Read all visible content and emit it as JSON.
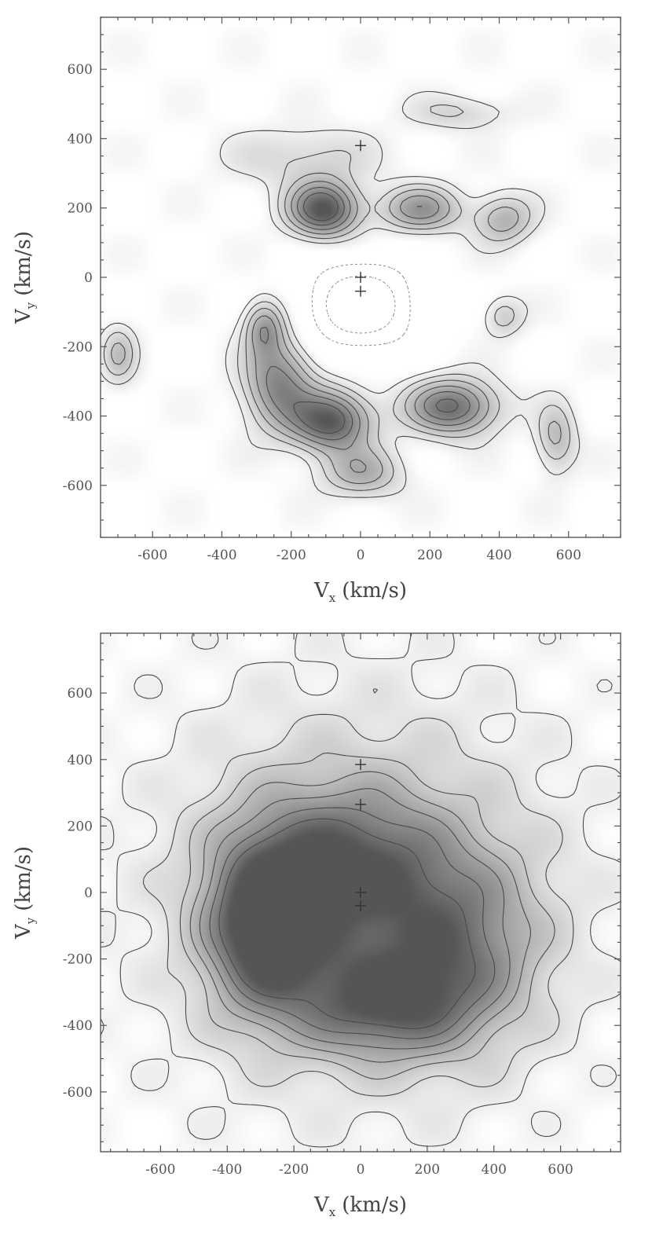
{
  "chart_data": [
    {
      "type": "heatmap",
      "subtype": "contour",
      "title": "",
      "xlabel": "V_x (km/s)",
      "ylabel": "V_y (km/s)",
      "xlabel_main": "V",
      "xlabel_sub": "x",
      "xlabel_unit": "(km/s)",
      "ylabel_main": "V",
      "ylabel_sub": "y",
      "ylabel_unit": "(km/s)",
      "xlim": [
        -750,
        750
      ],
      "ylim": [
        -750,
        750
      ],
      "xticks": [
        -600,
        -400,
        -200,
        0,
        200,
        400,
        600
      ],
      "yticks": [
        -600,
        -400,
        -200,
        0,
        200,
        400,
        600
      ],
      "colormap": "grayscale (dark = high)",
      "negative_contours": "dotted",
      "peaks": [
        {
          "x": -110,
          "y": 200,
          "level": 1.0,
          "sx": 70,
          "sy": 55
        },
        {
          "x": 170,
          "y": 200,
          "level": 0.6,
          "sx": 80,
          "sy": 45
        },
        {
          "x": -90,
          "y": -410,
          "level": 0.95,
          "sx": 80,
          "sy": 60
        },
        {
          "x": 260,
          "y": -370,
          "level": 0.85,
          "sx": 90,
          "sy": 55
        },
        {
          "x": -240,
          "y": -300,
          "level": 0.7,
          "sx": 70,
          "sy": 90
        },
        {
          "x": -280,
          "y": -140,
          "level": 0.55,
          "sx": 40,
          "sy": 55
        },
        {
          "x": 410,
          "y": 170,
          "level": 0.45,
          "sx": 60,
          "sy": 50
        },
        {
          "x": 0,
          "y": -560,
          "level": 0.45,
          "sx": 80,
          "sy": 50
        },
        {
          "x": 560,
          "y": -460,
          "level": 0.4,
          "sx": 40,
          "sy": 70
        },
        {
          "x": -700,
          "y": -220,
          "level": 0.35,
          "sx": 35,
          "sy": 60
        },
        {
          "x": 410,
          "y": -110,
          "level": 0.3,
          "sx": 40,
          "sy": 40
        },
        {
          "x": -170,
          "y": 350,
          "level": 0.25,
          "sx": 150,
          "sy": 60
        },
        {
          "x": 280,
          "y": 480,
          "level": 0.25,
          "sx": 100,
          "sy": 35
        },
        {
          "x": 0,
          "y": -80,
          "level": -0.7,
          "sx": 110,
          "sy": 90
        }
      ],
      "markers": [
        {
          "x": 0,
          "y": 380
        },
        {
          "x": 0,
          "y": 0
        },
        {
          "x": 0,
          "y": -40
        }
      ]
    },
    {
      "type": "heatmap",
      "subtype": "contour",
      "title": "",
      "xlabel": "V_x (km/s)",
      "ylabel": "V_y (km/s)",
      "xlabel_main": "V",
      "xlabel_sub": "x",
      "xlabel_unit": "(km/s)",
      "ylabel_main": "V",
      "ylabel_sub": "y",
      "ylabel_unit": "(km/s)",
      "xlim": [
        -780,
        780
      ],
      "ylim": [
        -780,
        780
      ],
      "xticks": [
        -600,
        -400,
        -200,
        0,
        200,
        400,
        600
      ],
      "yticks": [
        -600,
        -400,
        -200,
        0,
        200,
        400,
        600
      ],
      "colormap": "grayscale (dark = high)",
      "peaks": [
        {
          "x": -290,
          "y": -100,
          "level": 1.0,
          "sx": 120,
          "sy": 170
        },
        {
          "x": -60,
          "y": 80,
          "level": 0.7,
          "sx": 200,
          "sy": 160
        },
        {
          "x": 50,
          "y": -330,
          "level": 0.7,
          "sx": 180,
          "sy": 110
        },
        {
          "x": 280,
          "y": -150,
          "level": 0.55,
          "sx": 170,
          "sy": 190
        },
        {
          "x": 0,
          "y": 0,
          "level": 0.35,
          "sx": 420,
          "sy": 420
        }
      ],
      "markers": [
        {
          "x": 0,
          "y": 385
        },
        {
          "x": 0,
          "y": 265
        },
        {
          "x": 0,
          "y": 0
        },
        {
          "x": 0,
          "y": -40
        }
      ]
    }
  ]
}
